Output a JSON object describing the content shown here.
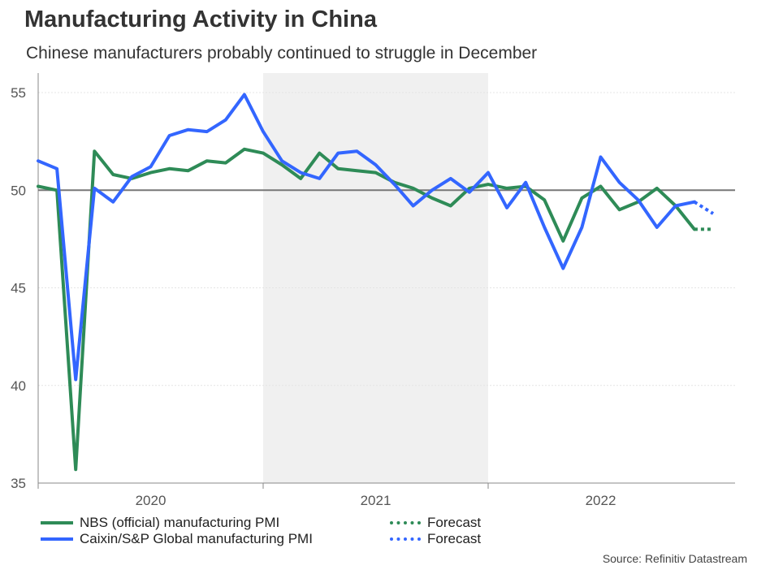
{
  "chart_data": {
    "type": "line",
    "title": "Manufacturing Activity in China",
    "subtitle": "Chinese manufacturers probably continued to struggle in December",
    "source": "Source: Refinitiv Datastream",
    "ylim": [
      35,
      56
    ],
    "yticks": [
      35,
      40,
      45,
      50,
      55
    ],
    "reference_line": 50,
    "x_start": "2019-12",
    "x_end": "2022-12",
    "year_labels": [
      {
        "label": "2020",
        "month": "2020-06"
      },
      {
        "label": "2021",
        "month": "2021-06"
      },
      {
        "label": "2022",
        "month": "2022-06"
      }
    ],
    "year_boundaries": [
      "2020-12",
      "2021-12"
    ],
    "shaded_period": [
      "2020-12",
      "2021-12"
    ],
    "series": [
      {
        "name": "NBS (official) manufacturing PMI",
        "color": "#2e8b57",
        "months": [
          "2019-12",
          "2020-01",
          "2020-02",
          "2020-03",
          "2020-04",
          "2020-05",
          "2020-06",
          "2020-07",
          "2020-08",
          "2020-09",
          "2020-10",
          "2020-11",
          "2020-12",
          "2021-01",
          "2021-02",
          "2021-03",
          "2021-04",
          "2021-05",
          "2021-06",
          "2021-07",
          "2021-08",
          "2021-09",
          "2021-10",
          "2021-11",
          "2021-12",
          "2022-01",
          "2022-02",
          "2022-03",
          "2022-04",
          "2022-05",
          "2022-06",
          "2022-07",
          "2022-08",
          "2022-09",
          "2022-10",
          "2022-11"
        ],
        "values": [
          50.2,
          50.0,
          35.7,
          52.0,
          50.8,
          50.6,
          50.9,
          51.1,
          51.0,
          51.5,
          51.4,
          52.1,
          51.9,
          51.3,
          50.6,
          51.9,
          51.1,
          51.0,
          50.9,
          50.4,
          50.1,
          49.6,
          49.2,
          50.1,
          50.3,
          50.1,
          50.2,
          49.5,
          47.4,
          49.6,
          50.2,
          49.0,
          49.4,
          50.1,
          49.2,
          48.0
        ],
        "forecast": {
          "months": [
            "2022-11",
            "2022-12"
          ],
          "values": [
            48.0,
            48.0
          ]
        }
      },
      {
        "name": "Caixin/S&P Global manufacturing PMI",
        "color": "#3366ff",
        "months": [
          "2019-12",
          "2020-01",
          "2020-02",
          "2020-03",
          "2020-04",
          "2020-05",
          "2020-06",
          "2020-07",
          "2020-08",
          "2020-09",
          "2020-10",
          "2020-11",
          "2020-12",
          "2021-01",
          "2021-02",
          "2021-03",
          "2021-04",
          "2021-05",
          "2021-06",
          "2021-07",
          "2021-08",
          "2021-09",
          "2021-10",
          "2021-11",
          "2021-12",
          "2022-01",
          "2022-02",
          "2022-03",
          "2022-04",
          "2022-05",
          "2022-06",
          "2022-07",
          "2022-08",
          "2022-09",
          "2022-10",
          "2022-11"
        ],
        "values": [
          51.5,
          51.1,
          40.3,
          50.1,
          49.4,
          50.7,
          51.2,
          52.8,
          53.1,
          53.0,
          53.6,
          54.9,
          53.0,
          51.5,
          50.9,
          50.6,
          51.9,
          52.0,
          51.3,
          50.3,
          49.2,
          50.0,
          50.6,
          49.9,
          50.9,
          49.1,
          50.4,
          48.1,
          46.0,
          48.1,
          51.7,
          50.4,
          49.5,
          48.1,
          49.2,
          49.4
        ],
        "forecast": {
          "months": [
            "2022-11",
            "2022-12"
          ],
          "values": [
            49.4,
            48.8
          ]
        }
      }
    ],
    "legend": [
      {
        "label": "NBS (official) manufacturing PMI",
        "style": "solid",
        "color": "#2e8b57"
      },
      {
        "label": "Caixin/S&P Global manufacturing PMI",
        "style": "solid",
        "color": "#3366ff"
      },
      {
        "label": "Forecast",
        "style": "dotted",
        "color": "#2e8b57"
      },
      {
        "label": "Forecast",
        "style": "dotted",
        "color": "#3366ff"
      }
    ]
  }
}
